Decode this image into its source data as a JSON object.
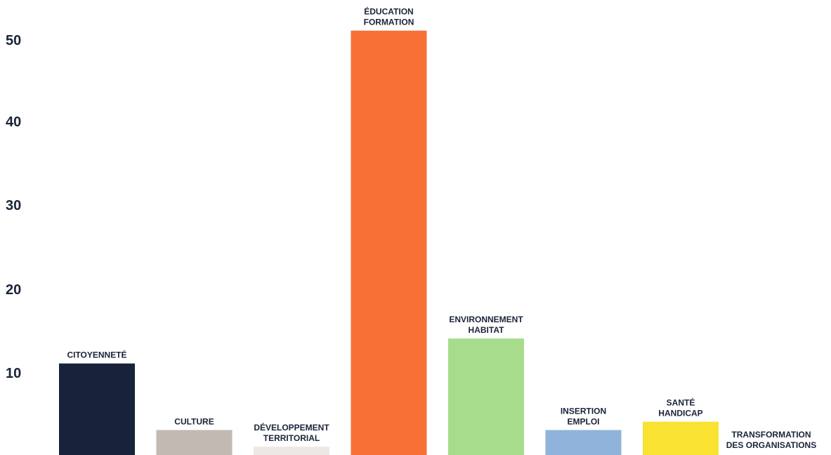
{
  "chart_data": {
    "type": "bar",
    "title": "",
    "xlabel": "",
    "ylabel": "",
    "ylim": [
      0,
      54
    ],
    "yticks": [
      "10",
      "20",
      "30",
      "40",
      "50"
    ],
    "grid": false,
    "categories": [
      [
        "CITOYENNETÉ"
      ],
      [
        "CULTURE"
      ],
      [
        "DÉVELOPPEMENT",
        "TERRITORIAL"
      ],
      [
        "ÉDUCATION",
        "FORMATION"
      ],
      [
        "ENVIRONNEMENT",
        "HABITAT"
      ],
      [
        "INSERTION",
        "EMPLOI"
      ],
      [
        "SANTÉ",
        "HANDICAP"
      ],
      [
        "TRANSFORMATION",
        "DES ORGANISATIONS"
      ]
    ],
    "values": [
      11,
      3,
      1,
      51,
      14,
      3,
      4,
      0
    ],
    "colors": [
      "#16233a",
      "#c2b9b3",
      "#ede8e4",
      "#f77035",
      "#a6dc8c",
      "#8fb3db",
      "#f9e231",
      "#ffffff"
    ]
  }
}
